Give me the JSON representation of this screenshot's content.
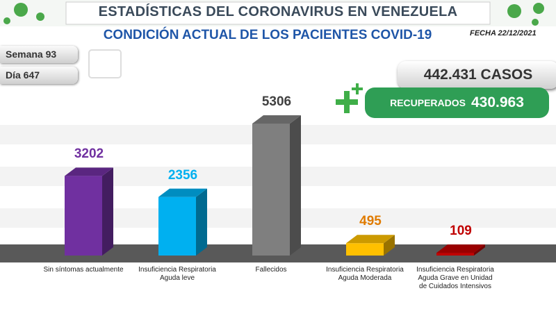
{
  "header": {
    "title": "ESTADÍSTICAS DEL CORONAVIRUS EN VENEZUELA",
    "subtitle": "CONDICIÓN ACTUAL DE LOS PACIENTES COVID-19",
    "date": "FECHA 22/12/2021",
    "week": "Semana 93",
    "day": "Día 647",
    "cases": "442.431 CASOS",
    "recovered_label": "RECUPERADOS",
    "recovered_value": "430.963"
  },
  "chart_data": {
    "type": "bar3d",
    "categories": [
      "Sin síntomas actualmente",
      "Insuficiencia Respiratoria Aguda leve",
      "Fallecidos",
      "Insuficiencia Respiratoria Aguda Moderada",
      "Insuficiencia Respiratoria Aguda Grave en Unidad de Cuidados Intensivos"
    ],
    "values": [
      3202,
      2356,
      5306,
      495,
      109
    ],
    "colors": [
      "#7030a0",
      "#00b0f0",
      "#7f7f7f",
      "#ffc000",
      "#c00000"
    ],
    "label_colors": [
      "#7030a0",
      "#00b0f0",
      "#404040",
      "#e07b00",
      "#c00000"
    ]
  }
}
